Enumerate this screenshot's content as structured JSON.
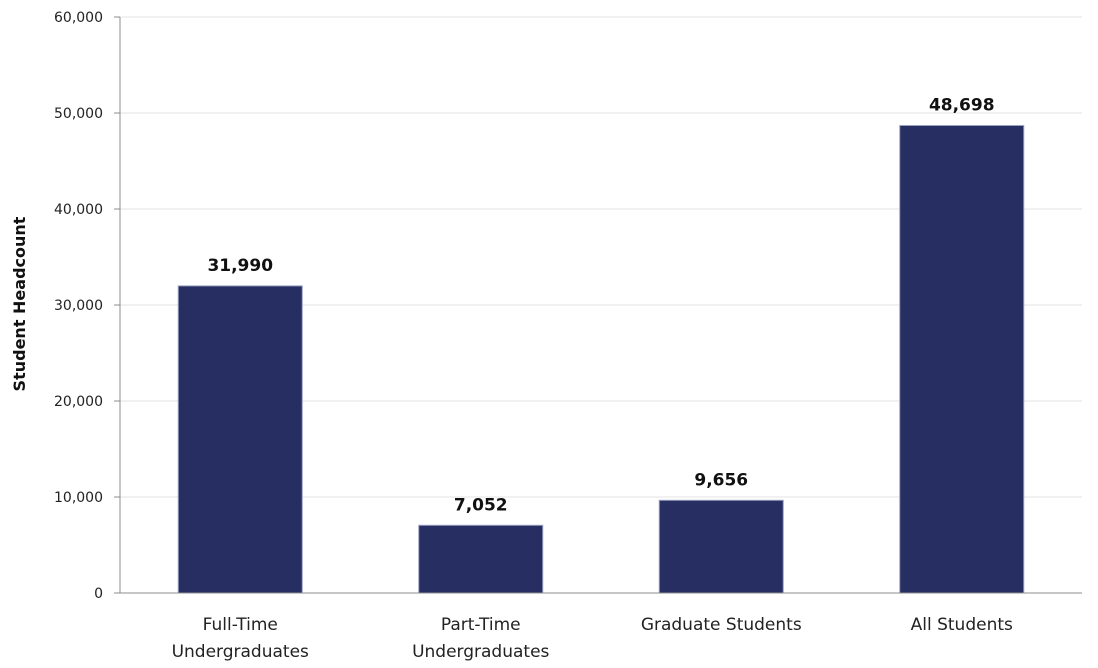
{
  "chart_data": {
    "type": "bar",
    "categories": [
      [
        "Full-Time",
        "Undergraduates"
      ],
      [
        "Part-Time",
        "Undergraduates"
      ],
      [
        "Graduate Students"
      ],
      [
        "All Students"
      ]
    ],
    "values": [
      31990,
      7052,
      9656,
      48698
    ],
    "value_labels": [
      "31,990",
      "7,052",
      "9,656",
      "48,698"
    ],
    "ylabel": "Student Headcount",
    "xlabel": "",
    "ylim": [
      0,
      60000
    ],
    "yticks": [
      0,
      10000,
      20000,
      30000,
      40000,
      50000,
      60000
    ],
    "ytick_labels": [
      "0",
      "10,000",
      "20,000",
      "30,000",
      "40,000",
      "50,000",
      "60,000"
    ],
    "grid": "horizontal",
    "legend": "none",
    "bar_color": "#262e62"
  }
}
